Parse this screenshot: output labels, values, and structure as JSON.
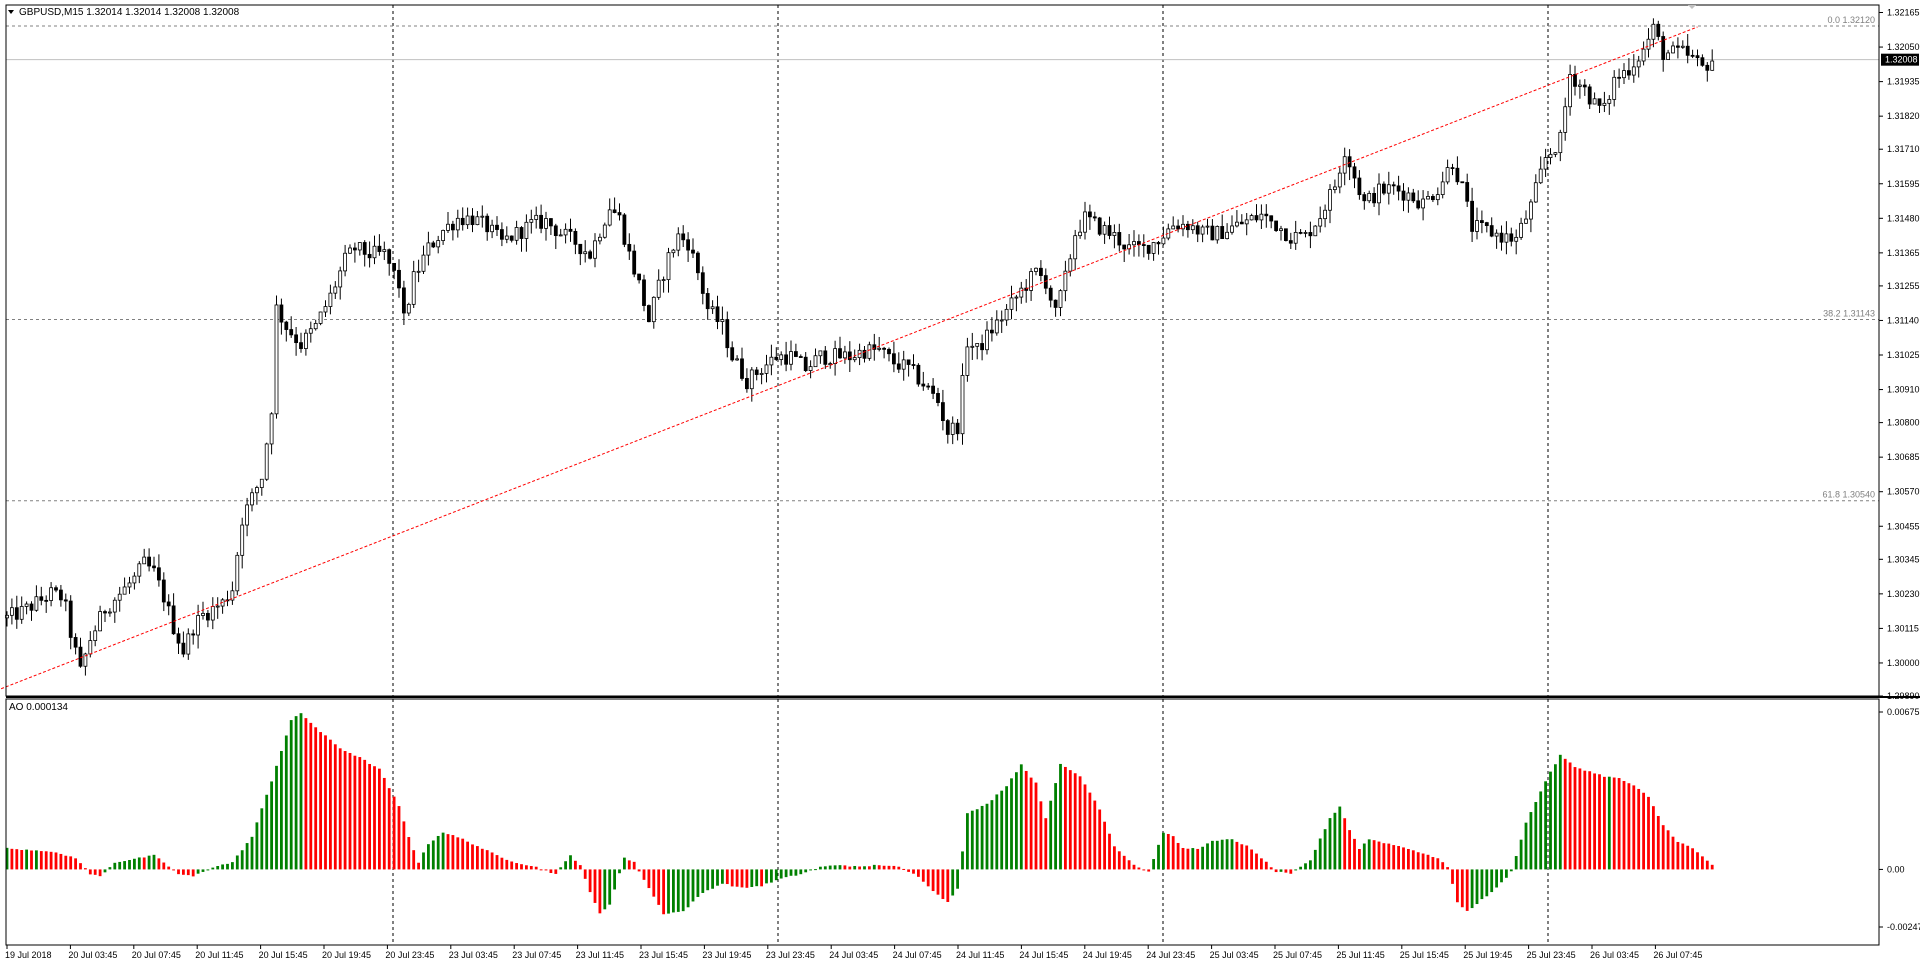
{
  "header": {
    "symbol_line": "GBPUSD,M15  1.32014 1.32014 1.32008 1.32008"
  },
  "colors": {
    "background": "#ffffff",
    "border": "#000000",
    "grid": "#000000",
    "bull_bar": "#008000",
    "bear_bar": "#ff0000",
    "trendline": "#ff0000",
    "fib": "#808080",
    "current_price_bg": "#000000",
    "current_price_text": "#ffffff"
  },
  "price_axis": {
    "labels": [
      "1.32165",
      "1.32050",
      "1.31935",
      "1.31820",
      "1.31710",
      "1.31595",
      "1.31480",
      "1.31365",
      "1.31255",
      "1.31140",
      "1.31025",
      "1.30910",
      "1.30800",
      "1.30685",
      "1.30570",
      "1.30455",
      "1.30345",
      "1.30230",
      "1.30115",
      "1.30000",
      "1.29890"
    ],
    "current_price": "1.32008"
  },
  "fib_levels": [
    {
      "label": "0.0 1.32120",
      "value": 1.3212
    },
    {
      "label": "38.2 1.31143",
      "value": 1.31143
    },
    {
      "label": "61.8 1.30540",
      "value": 1.3054
    }
  ],
  "time_axis": {
    "labels": [
      "19 Jul 2018",
      "20 Jul 03:45",
      "20 Jul 07:45",
      "20 Jul 11:45",
      "20 Jul 15:45",
      "20 Jul 19:45",
      "20 Jul 23:45",
      "23 Jul 03:45",
      "23 Jul 07:45",
      "23 Jul 11:45",
      "23 Jul 15:45",
      "23 Jul 19:45",
      "23 Jul 23:45",
      "24 Jul 03:45",
      "24 Jul 07:45",
      "24 Jul 11:45",
      "24 Jul 15:45",
      "24 Jul 19:45",
      "24 Jul 23:45",
      "25 Jul 03:45",
      "25 Jul 07:45",
      "25 Jul 11:45",
      "25 Jul 15:45",
      "25 Jul 19:45",
      "25 Jul 23:45",
      "26 Jul 03:45",
      "26 Jul 07:45"
    ]
  },
  "indicator": {
    "label": "AO 0.000134",
    "axis_labels": [
      "0.006755",
      "0.00",
      "-0.002471"
    ]
  },
  "chart_data": {
    "type": "candlestick",
    "symbol": "GBPUSD",
    "timeframe": "M15",
    "ylim": [
      1.2989,
      1.3219
    ],
    "anchors": [
      [
        0,
        1.3015
      ],
      [
        3,
        1.3017
      ],
      [
        6,
        1.302
      ],
      [
        9,
        1.3023
      ],
      [
        11,
        1.3022
      ],
      [
        12,
        1.3018
      ],
      [
        13,
        1.301
      ],
      [
        15,
        1.2997
      ],
      [
        17,
        1.3008
      ],
      [
        20,
        1.3018
      ],
      [
        23,
        1.3023
      ],
      [
        26,
        1.3028
      ],
      [
        28,
        1.3033
      ],
      [
        30,
        1.303
      ],
      [
        32,
        1.3022
      ],
      [
        34,
        1.3012
      ],
      [
        36,
        1.3004
      ],
      [
        38,
        1.3012
      ],
      [
        40,
        1.3016
      ],
      [
        42,
        1.3018
      ],
      [
        44,
        1.302
      ],
      [
        46,
        1.3025
      ],
      [
        48,
        1.3048
      ],
      [
        50,
        1.3055
      ],
      [
        52,
        1.3062
      ],
      [
        54,
        1.3085
      ],
      [
        55,
        1.3118
      ],
      [
        57,
        1.3112
      ],
      [
        60,
        1.3106
      ],
      [
        63,
        1.3112
      ],
      [
        66,
        1.3122
      ],
      [
        69,
        1.3134
      ],
      [
        71,
        1.3138
      ],
      [
        74,
        1.3136
      ],
      [
        77,
        1.3136
      ],
      [
        80,
        1.3126
      ],
      [
        81,
        1.3114
      ],
      [
        83,
        1.3128
      ],
      [
        86,
        1.3138
      ],
      [
        89,
        1.3144
      ],
      [
        92,
        1.3148
      ],
      [
        95,
        1.3148
      ],
      [
        98,
        1.3145
      ],
      [
        101,
        1.314
      ],
      [
        104,
        1.3143
      ],
      [
        107,
        1.3146
      ],
      [
        110,
        1.3147
      ],
      [
        113,
        1.3143
      ],
      [
        116,
        1.314
      ],
      [
        119,
        1.3136
      ],
      [
        121,
        1.3144
      ],
      [
        123,
        1.3152
      ],
      [
        125,
        1.3148
      ],
      [
        127,
        1.3136
      ],
      [
        129,
        1.3126
      ],
      [
        131,
        1.3114
      ],
      [
        133,
        1.3125
      ],
      [
        135,
        1.3135
      ],
      [
        137,
        1.3142
      ],
      [
        139,
        1.314
      ],
      [
        141,
        1.313
      ],
      [
        143,
        1.3118
      ],
      [
        146,
        1.3112
      ],
      [
        148,
        1.3102
      ],
      [
        151,
        1.3094
      ],
      [
        154,
        1.3098
      ],
      [
        157,
        1.3102
      ],
      [
        160,
        1.3102
      ],
      [
        163,
        1.3098
      ],
      [
        166,
        1.3102
      ],
      [
        169,
        1.3102
      ],
      [
        172,
        1.3102
      ],
      [
        175,
        1.3104
      ],
      [
        178,
        1.3104
      ],
      [
        181,
        1.31
      ],
      [
        184,
        1.3098
      ],
      [
        187,
        1.3093
      ],
      [
        190,
        1.3087
      ],
      [
        192,
        1.3077
      ],
      [
        194,
        1.3079
      ],
      [
        196,
        1.3107
      ],
      [
        198,
        1.3104
      ],
      [
        201,
        1.3111
      ],
      [
        204,
        1.3117
      ],
      [
        207,
        1.3124
      ],
      [
        210,
        1.313
      ],
      [
        212,
        1.3127
      ],
      [
        214,
        1.3116
      ],
      [
        216,
        1.3128
      ],
      [
        218,
        1.3143
      ],
      [
        220,
        1.3148
      ],
      [
        223,
        1.3145
      ],
      [
        226,
        1.3142
      ],
      [
        229,
        1.3138
      ],
      [
        232,
        1.3138
      ],
      [
        235,
        1.3141
      ],
      [
        238,
        1.3146
      ],
      [
        241,
        1.3146
      ],
      [
        244,
        1.3143
      ],
      [
        247,
        1.3143
      ],
      [
        250,
        1.3145
      ],
      [
        253,
        1.3147
      ],
      [
        256,
        1.3149
      ],
      [
        259,
        1.3146
      ],
      [
        262,
        1.3142
      ],
      [
        265,
        1.3142
      ],
      [
        268,
        1.3149
      ],
      [
        271,
        1.3159
      ],
      [
        273,
        1.3171
      ],
      [
        275,
        1.3162
      ],
      [
        277,
        1.3153
      ],
      [
        280,
        1.3157
      ],
      [
        283,
        1.3158
      ],
      [
        286,
        1.3156
      ],
      [
        289,
        1.3153
      ],
      [
        292,
        1.3158
      ],
      [
        295,
        1.3167
      ],
      [
        297,
        1.3158
      ],
      [
        299,
        1.3145
      ],
      [
        302,
        1.3144
      ],
      [
        305,
        1.3142
      ],
      [
        308,
        1.3141
      ],
      [
        311,
        1.3152
      ],
      [
        314,
        1.3168
      ],
      [
        317,
        1.3174
      ],
      [
        319,
        1.3196
      ],
      [
        322,
        1.3191
      ],
      [
        324,
        1.3186
      ],
      [
        326,
        1.3184
      ],
      [
        328,
        1.3194
      ],
      [
        331,
        1.3198
      ],
      [
        334,
        1.3204
      ],
      [
        336,
        1.3211
      ],
      [
        338,
        1.3203
      ],
      [
        340,
        1.3203
      ],
      [
        342,
        1.3203
      ],
      [
        344,
        1.3201
      ],
      [
        346,
        1.3198
      ],
      [
        348,
        1.3201
      ]
    ],
    "ao_anchors": [
      [
        0,
        0.0009
      ],
      [
        8,
        0.0008
      ],
      [
        14,
        0.0005
      ],
      [
        17,
        -0.0002
      ],
      [
        19,
        -0.0003
      ],
      [
        22,
        0.0003
      ],
      [
        30,
        0.0006
      ],
      [
        32,
        0.0003
      ],
      [
        35,
        -0.0002
      ],
      [
        38,
        -0.0003
      ],
      [
        42,
        0.0001
      ],
      [
        46,
        0.0003
      ],
      [
        50,
        0.0014
      ],
      [
        54,
        0.0038
      ],
      [
        58,
        0.0064
      ],
      [
        60,
        0.0067
      ],
      [
        64,
        0.0059
      ],
      [
        68,
        0.0052
      ],
      [
        72,
        0.0048
      ],
      [
        76,
        0.0043
      ],
      [
        80,
        0.0027
      ],
      [
        82,
        0.0014
      ],
      [
        84,
        0.0003
      ],
      [
        86,
        0.0011
      ],
      [
        89,
        0.0016
      ],
      [
        93,
        0.0013
      ],
      [
        97,
        0.0009
      ],
      [
        101,
        0.0005
      ],
      [
        104,
        0.0003
      ],
      [
        108,
        0.0001
      ],
      [
        112,
        -0.0002
      ],
      [
        115,
        0.0006
      ],
      [
        117,
        0.0002
      ],
      [
        119,
        -0.001
      ],
      [
        121,
        -0.0019
      ],
      [
        123,
        -0.0015
      ],
      [
        126,
        0.0005
      ],
      [
        128,
        0.0003
      ],
      [
        131,
        -0.0008
      ],
      [
        134,
        -0.0019
      ],
      [
        138,
        -0.0018
      ],
      [
        142,
        -0.001
      ],
      [
        146,
        -0.0006
      ],
      [
        150,
        -0.0008
      ],
      [
        154,
        -0.0007
      ],
      [
        158,
        -0.0004
      ],
      [
        162,
        -0.0002
      ],
      [
        166,
        0.0001
      ],
      [
        170,
        0.0002
      ],
      [
        174,
        0.0001
      ],
      [
        178,
        0.0002
      ],
      [
        182,
        0.0001
      ],
      [
        186,
        -0.0003
      ],
      [
        190,
        -0.0011
      ],
      [
        192,
        -0.0014
      ],
      [
        194,
        -0.0008
      ],
      [
        196,
        0.0024
      ],
      [
        200,
        0.0028
      ],
      [
        204,
        0.0036
      ],
      [
        207,
        0.0045
      ],
      [
        210,
        0.0037
      ],
      [
        212,
        0.0022
      ],
      [
        215,
        0.0045
      ],
      [
        219,
        0.004
      ],
      [
        223,
        0.0026
      ],
      [
        226,
        0.001
      ],
      [
        230,
        0.0002
      ],
      [
        233,
        -0.0001
      ],
      [
        236,
        0.0016
      ],
      [
        238,
        0.0014
      ],
      [
        240,
        0.0009
      ],
      [
        243,
        0.0009
      ],
      [
        246,
        0.0012
      ],
      [
        250,
        0.0013
      ],
      [
        253,
        0.001
      ],
      [
        256,
        0.0005
      ],
      [
        259,
        -0.0001
      ],
      [
        262,
        -0.0002
      ],
      [
        266,
        0.0004
      ],
      [
        270,
        0.0022
      ],
      [
        272,
        0.0027
      ],
      [
        274,
        0.0017
      ],
      [
        276,
        0.0009
      ],
      [
        278,
        0.0013
      ],
      [
        282,
        0.0011
      ],
      [
        286,
        0.0009
      ],
      [
        290,
        0.0006
      ],
      [
        292,
        0.0005
      ],
      [
        294,
        0.0001
      ],
      [
        296,
        -0.0014
      ],
      [
        298,
        -0.0018
      ],
      [
        301,
        -0.0013
      ],
      [
        304,
        -0.0008
      ],
      [
        307,
        -0.0001
      ],
      [
        310,
        0.002
      ],
      [
        314,
        0.0038
      ],
      [
        317,
        0.0049
      ],
      [
        320,
        0.0044
      ],
      [
        323,
        0.0042
      ],
      [
        326,
        0.004
      ],
      [
        329,
        0.0039
      ],
      [
        332,
        0.0036
      ],
      [
        335,
        0.0031
      ],
      [
        338,
        0.0019
      ],
      [
        341,
        0.0012
      ],
      [
        344,
        0.0009
      ],
      [
        348,
        0.0002
      ]
    ],
    "ao_ylim": [
      -0.002471,
      0.006755
    ],
    "trendline": {
      "from": [
        -5,
        1.2989
      ],
      "to": [
        345,
        1.32117
      ]
    }
  }
}
